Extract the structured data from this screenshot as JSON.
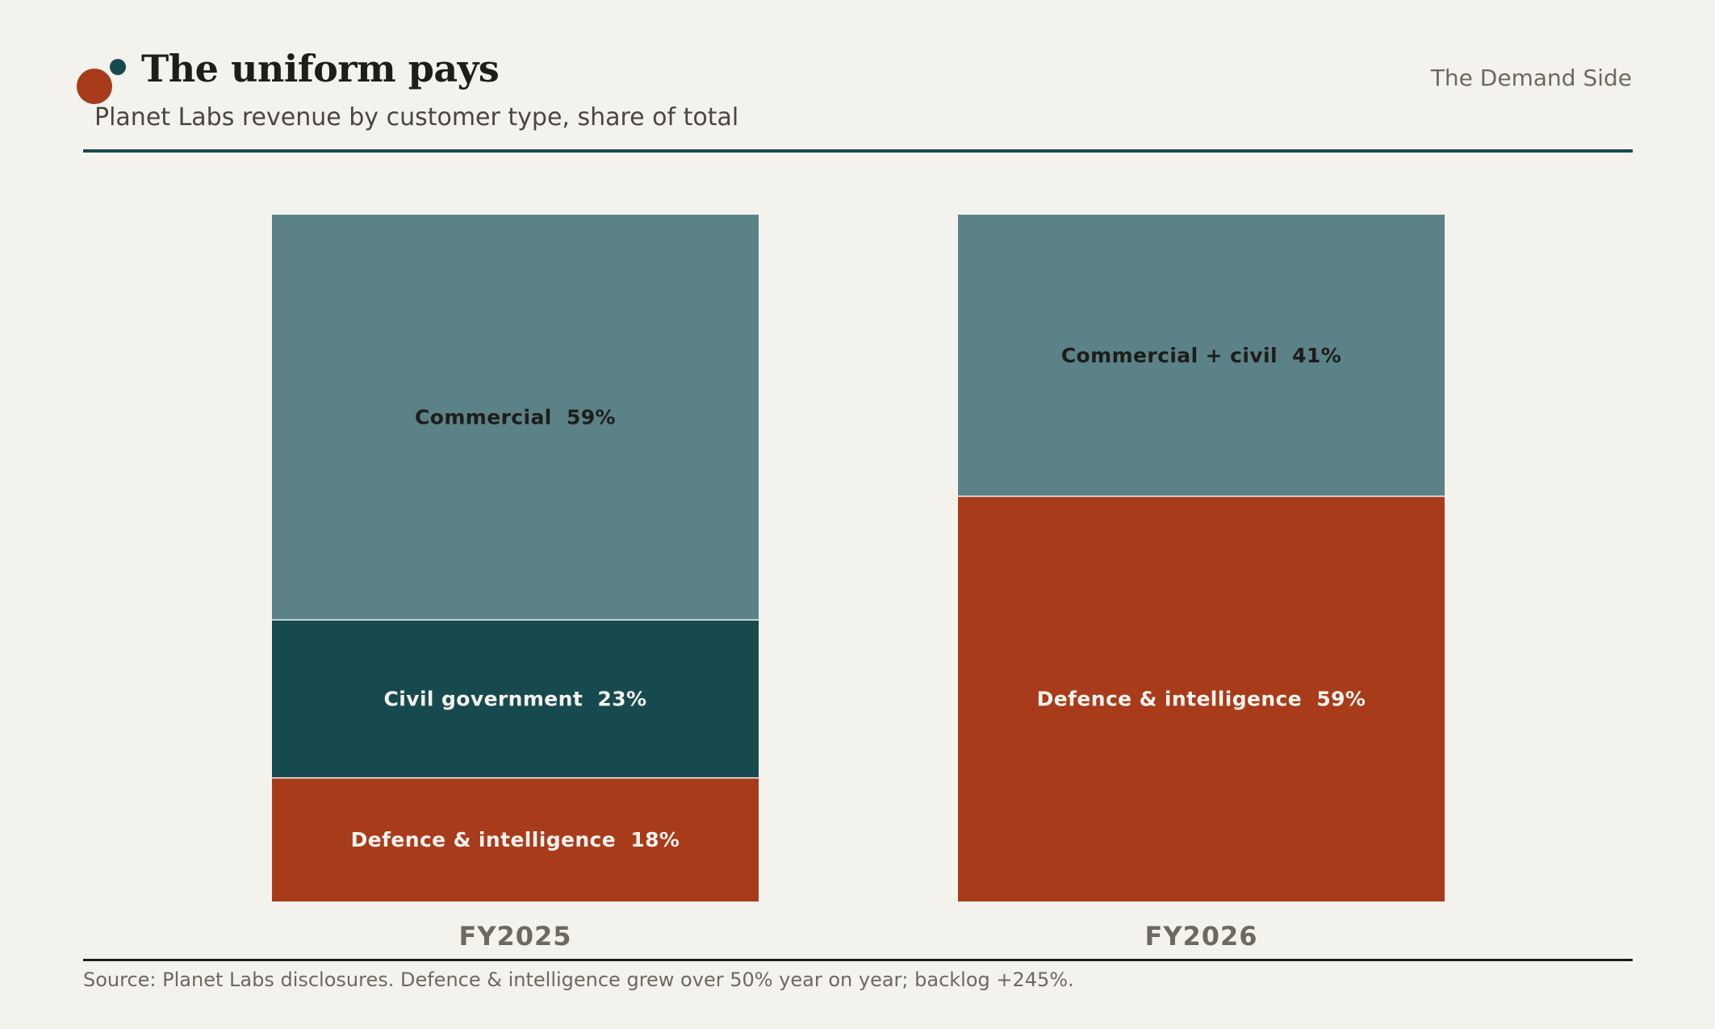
{
  "header": {
    "title": "The uniform pays",
    "subtitle": "Planet Labs revenue by customer type, share of total",
    "brand": "The Demand Side"
  },
  "footer": {
    "source": "Source: Planet Labs disclosures. Defence & intelligence grew over 50% year on year; backlog +245%."
  },
  "colors": {
    "background": "#f4f2ed",
    "commercial": "#5b8286",
    "civil": "#174a4f",
    "defence": "#a83b1a",
    "rule": "#174a4f",
    "dark_text": "#1d1d1b",
    "light_text": "#f4f2ed",
    "category_text": "#6e695f"
  },
  "chart_data": {
    "type": "bar",
    "stacked": true,
    "categories": [
      "FY2025",
      "FY2026"
    ],
    "ylim": [
      0,
      100
    ],
    "stacks": [
      {
        "category": "FY2025",
        "segments": [
          {
            "name": "Defence & intelligence",
            "value": 18,
            "label": "Defence & intelligence  18%",
            "color": "#a83b1a",
            "text_color": "#f4f2ed"
          },
          {
            "name": "Civil government",
            "value": 23,
            "label": "Civil government  23%",
            "color": "#174a4f",
            "text_color": "#f4f2ed"
          },
          {
            "name": "Commercial",
            "value": 59,
            "label": "Commercial  59%",
            "color": "#5b8286",
            "text_color": "#1d1d1b"
          }
        ]
      },
      {
        "category": "FY2026",
        "segments": [
          {
            "name": "Defence & intelligence",
            "value": 59,
            "label": "Defence & intelligence  59%",
            "color": "#a83b1a",
            "text_color": "#f4f2ed"
          },
          {
            "name": "Commercial + civil",
            "value": 41,
            "label": "Commercial + civil  41%",
            "color": "#5b8286",
            "text_color": "#1d1d1b"
          }
        ]
      }
    ]
  }
}
